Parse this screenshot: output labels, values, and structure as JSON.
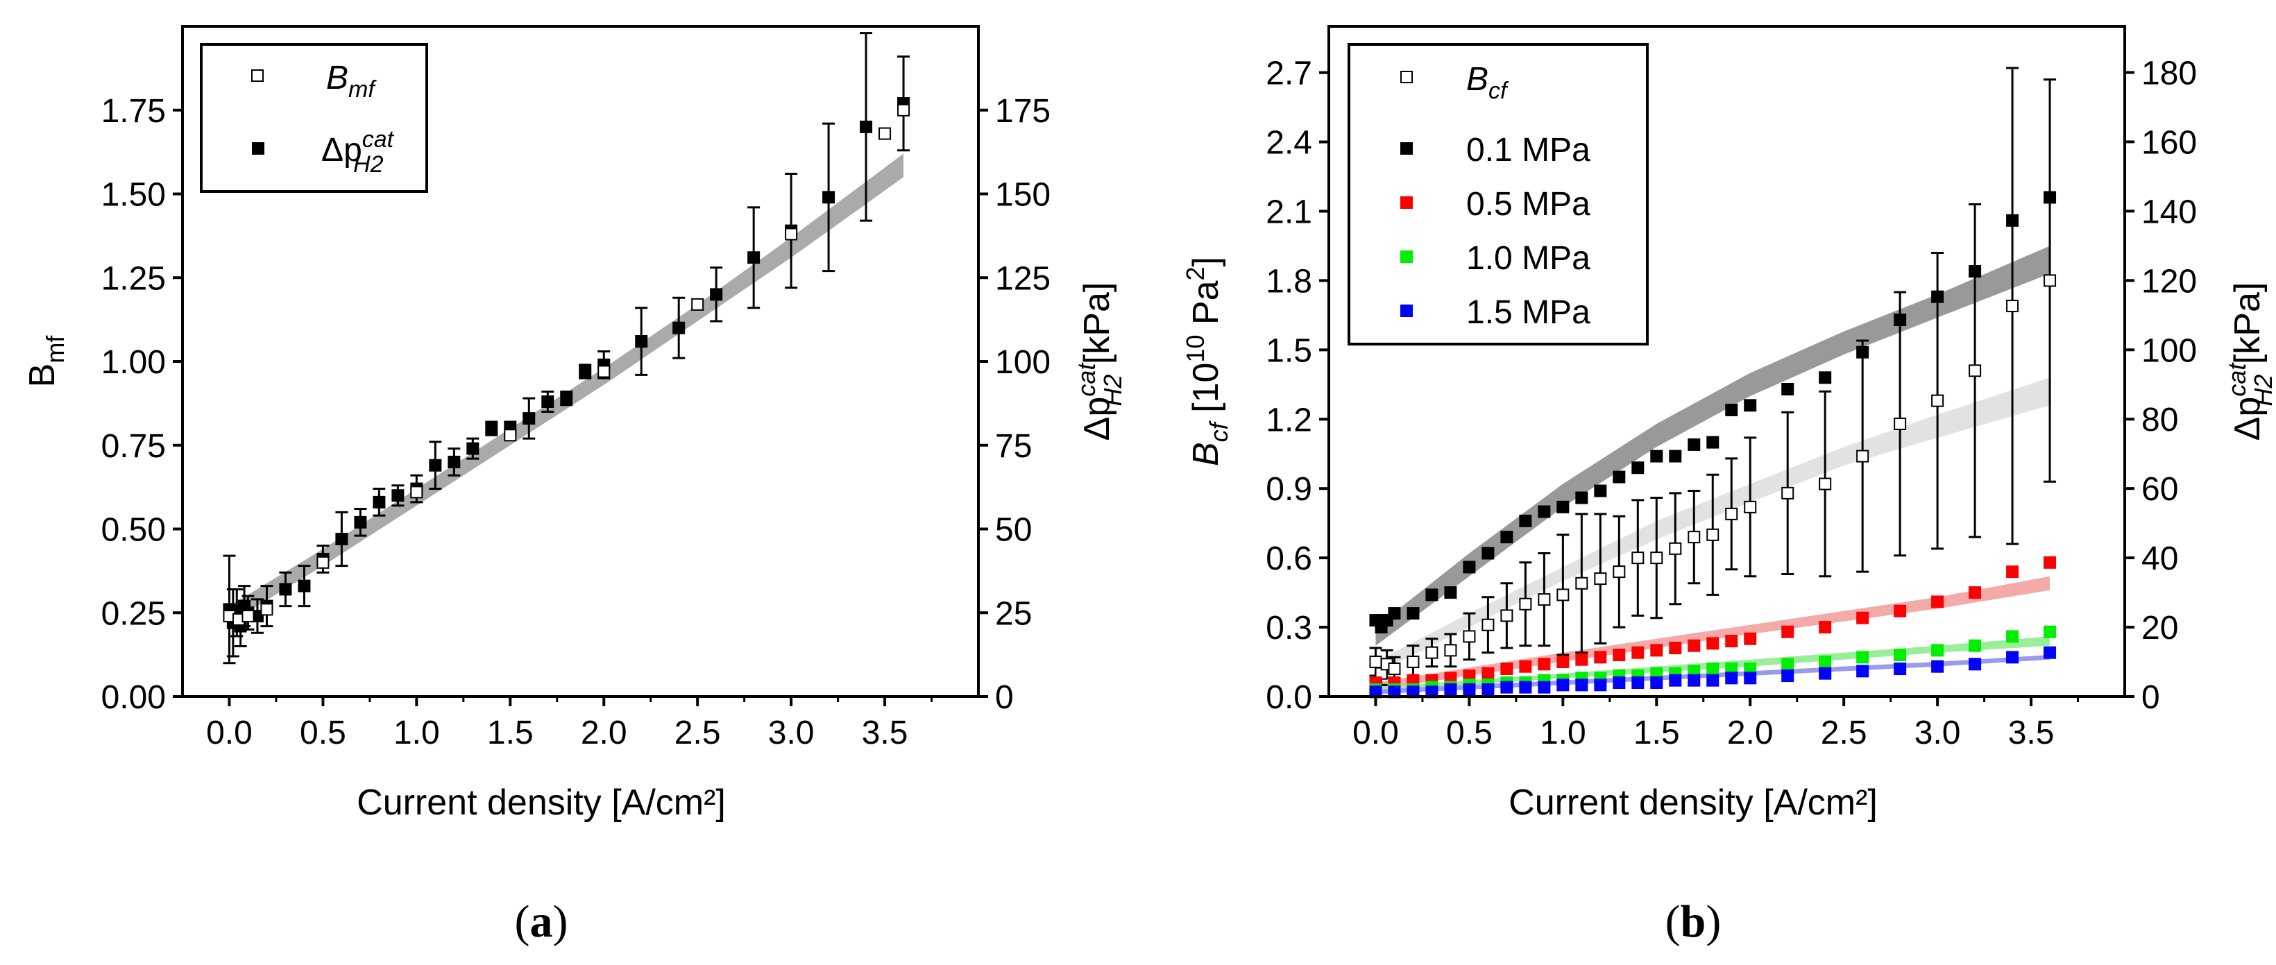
{
  "chart_data": [
    {
      "type": "scatter",
      "panel_label": "a",
      "xlabel": "Current density [A/cm²]",
      "ylabel": {
        "base": "B",
        "sub": "mf"
      },
      "y2label": {
        "prefix": "Δp",
        "sup": "cat",
        "sub": "H2",
        "unit": " [kPa]"
      },
      "xlim": [
        -0.25,
        4.0
      ],
      "ylim": [
        0,
        2.0
      ],
      "y2lim": [
        0,
        200
      ],
      "xticks": [
        "0.0",
        "0.5",
        "1.0",
        "1.5",
        "2.0",
        "2.5",
        "3.0",
        "3.5"
      ],
      "yticks": [
        "0.00",
        "0.25",
        "0.50",
        "0.75",
        "1.00",
        "1.25",
        "1.50",
        "1.75"
      ],
      "y2ticks": [
        "0",
        "25",
        "50",
        "75",
        "100",
        "125",
        "150",
        "175"
      ],
      "legend_position": "top-left",
      "legend": [
        {
          "base": "B",
          "sub": "mf",
          "marker": "open-square"
        },
        {
          "base": "Δp",
          "sup": "cat",
          "sub": "H2",
          "marker": "filled-square"
        }
      ],
      "band": {
        "x": [
          0.0,
          0.5,
          1.0,
          1.5,
          2.0,
          2.5,
          3.0,
          3.6
        ],
        "upper": [
          0.27,
          0.44,
          0.62,
          0.8,
          0.98,
          1.17,
          1.37,
          1.62
        ],
        "lower": [
          0.22,
          0.39,
          0.57,
          0.75,
          0.93,
          1.12,
          1.31,
          1.55
        ],
        "color": "#aaaaaa"
      },
      "series": [
        {
          "marker": "filled-square",
          "color": "#000000",
          "x": [
            0.0,
            0.02,
            0.04,
            0.06,
            0.08,
            0.1,
            0.15,
            0.2,
            0.3,
            0.4,
            0.5,
            0.6,
            0.7,
            0.8,
            0.9,
            1.0,
            1.1,
            1.2,
            1.3,
            1.4,
            1.5,
            1.6,
            1.7,
            1.8,
            1.9,
            2.0,
            2.2,
            2.4,
            2.6,
            2.8,
            3.0,
            3.2,
            3.4,
            3.6
          ],
          "y": [
            0.26,
            0.22,
            0.25,
            0.21,
            0.27,
            0.25,
            0.24,
            0.27,
            0.32,
            0.33,
            0.41,
            0.47,
            0.52,
            0.58,
            0.6,
            0.62,
            0.69,
            0.7,
            0.74,
            0.8,
            0.8,
            0.83,
            0.88,
            0.89,
            0.97,
            0.99,
            1.06,
            1.1,
            1.2,
            1.31,
            1.39,
            1.49,
            1.7,
            1.77
          ],
          "err": [
            0.16,
            0.1,
            0.07,
            0.06,
            0.06,
            0.05,
            0.05,
            0.06,
            0.05,
            0.06,
            0.04,
            0.08,
            0.04,
            0.04,
            0.03,
            0.04,
            0.07,
            0.04,
            0.03,
            0.02,
            0.02,
            0.06,
            0.03,
            0.02,
            0.02,
            0.04,
            0.1,
            0.09,
            0.08,
            0.15,
            0.17,
            0.22,
            0.28,
            0.14
          ]
        },
        {
          "marker": "open-square",
          "color": "#000000",
          "x": [
            0.0,
            0.05,
            0.1,
            0.2,
            0.5,
            1.0,
            1.5,
            2.0,
            2.5,
            3.0,
            3.5,
            3.6
          ],
          "y": [
            0.24,
            0.23,
            0.24,
            0.26,
            0.4,
            0.61,
            0.78,
            0.97,
            1.17,
            1.38,
            1.68,
            1.75
          ]
        }
      ]
    },
    {
      "type": "scatter",
      "panel_label": "b",
      "xlabel": "Current density [A/cm²]",
      "ylabel": {
        "base": "B",
        "sub": "cf",
        "unit_pre": " [10",
        "unit_sup1": "10",
        "unit_mid": " Pa",
        "unit_sup2": "2",
        "unit_post": "]"
      },
      "y2label": {
        "prefix": "Δp",
        "sup": "cat",
        "sub": "H2",
        "unit": " [kPa]"
      },
      "xlim": [
        -0.25,
        4.0
      ],
      "ylim": [
        0,
        2.9
      ],
      "y2lim": [
        0,
        193.3
      ],
      "xticks": [
        "0.0",
        "0.5",
        "1.0",
        "1.5",
        "2.0",
        "2.5",
        "3.0",
        "3.5"
      ],
      "yticks": [
        "0.0",
        "0.3",
        "0.6",
        "0.9",
        "1.2",
        "1.5",
        "1.8",
        "2.1",
        "2.4",
        "2.7"
      ],
      "y2ticks": [
        "0",
        "20",
        "40",
        "60",
        "80",
        "100",
        "120",
        "140",
        "160",
        "180"
      ],
      "legend_position": "top-left",
      "legend": [
        {
          "base": "B",
          "sub": "cf",
          "marker": "open-square",
          "color": "#000000"
        },
        {
          "label": "0.1 MPa",
          "marker": "filled-square",
          "color": "#000000"
        },
        {
          "label": "0.5 MPa",
          "marker": "filled-square",
          "color": "#ff0000"
        },
        {
          "label": "1.0 MPa",
          "marker": "filled-square",
          "color": "#00ee00"
        },
        {
          "label": "1.5 MPa",
          "marker": "filled-square",
          "color": "#0000ff"
        }
      ],
      "bands": [
        {
          "color": "#999999",
          "x": [
            0.0,
            0.5,
            1.0,
            1.5,
            2.0,
            2.5,
            3.0,
            3.6
          ],
          "upper": [
            0.3,
            0.62,
            0.92,
            1.18,
            1.4,
            1.58,
            1.74,
            1.95
          ],
          "lower": [
            0.22,
            0.52,
            0.82,
            1.08,
            1.3,
            1.48,
            1.64,
            1.83
          ]
        },
        {
          "color": "#e2e2e2",
          "x": [
            0.0,
            0.5,
            1.0,
            1.5,
            2.0,
            2.5,
            3.0,
            3.6
          ],
          "upper": [
            0.15,
            0.36,
            0.56,
            0.76,
            0.92,
            1.08,
            1.22,
            1.38
          ],
          "lower": [
            0.1,
            0.3,
            0.5,
            0.68,
            0.84,
            1.0,
            1.12,
            1.26
          ]
        },
        {
          "color": "#f5aaaa",
          "x": [
            0.0,
            1.0,
            2.0,
            3.0,
            3.6
          ],
          "upper": [
            0.06,
            0.19,
            0.31,
            0.43,
            0.52
          ],
          "lower": [
            0.03,
            0.15,
            0.27,
            0.38,
            0.46
          ]
        },
        {
          "color": "#99ee99",
          "x": [
            0.0,
            1.0,
            2.0,
            3.0,
            3.6
          ],
          "upper": [
            0.04,
            0.1,
            0.16,
            0.22,
            0.26
          ],
          "lower": [
            0.02,
            0.08,
            0.13,
            0.19,
            0.22
          ]
        },
        {
          "color": "#9999ee",
          "x": [
            0.0,
            1.0,
            2.0,
            3.0,
            3.6
          ],
          "upper": [
            0.03,
            0.07,
            0.11,
            0.15,
            0.18
          ],
          "lower": [
            0.01,
            0.05,
            0.09,
            0.13,
            0.16
          ]
        }
      ],
      "series": [
        {
          "name": "0.1 MPa",
          "marker": "filled-square",
          "color": "#000000",
          "x": [
            0.0,
            0.03,
            0.06,
            0.1,
            0.2,
            0.3,
            0.4,
            0.5,
            0.6,
            0.7,
            0.8,
            0.9,
            1.0,
            1.1,
            1.2,
            1.3,
            1.4,
            1.5,
            1.6,
            1.7,
            1.8,
            1.9,
            2.0,
            2.2,
            2.4,
            2.6,
            2.8,
            3.0,
            3.2,
            3.4,
            3.6
          ],
          "y": [
            0.33,
            0.3,
            0.33,
            0.36,
            0.36,
            0.44,
            0.45,
            0.56,
            0.62,
            0.69,
            0.76,
            0.8,
            0.82,
            0.86,
            0.89,
            0.95,
            0.99,
            1.04,
            1.04,
            1.09,
            1.1,
            1.24,
            1.26,
            1.33,
            1.38,
            1.49,
            1.63,
            1.73,
            1.84,
            2.06,
            2.16
          ]
        },
        {
          "name": "B_cf",
          "marker": "open-square",
          "color": "#000000",
          "x": [
            0.0,
            0.03,
            0.06,
            0.1,
            0.2,
            0.3,
            0.4,
            0.5,
            0.6,
            0.7,
            0.8,
            0.9,
            1.0,
            1.1,
            1.2,
            1.3,
            1.4,
            1.5,
            1.6,
            1.7,
            1.8,
            1.9,
            2.0,
            2.2,
            2.4,
            2.6,
            2.8,
            3.0,
            3.2,
            3.4,
            3.6
          ],
          "y": [
            0.15,
            0.1,
            0.14,
            0.12,
            0.15,
            0.19,
            0.2,
            0.26,
            0.31,
            0.35,
            0.4,
            0.42,
            0.44,
            0.49,
            0.51,
            0.54,
            0.6,
            0.6,
            0.64,
            0.69,
            0.7,
            0.79,
            0.82,
            0.88,
            0.92,
            1.04,
            1.18,
            1.28,
            1.41,
            1.69,
            1.8
          ],
          "err": [
            0.06,
            0.05,
            0.06,
            0.05,
            0.07,
            0.06,
            0.07,
            0.1,
            0.12,
            0.14,
            0.18,
            0.2,
            0.26,
            0.3,
            0.28,
            0.24,
            0.25,
            0.26,
            0.24,
            0.2,
            0.26,
            0.24,
            0.3,
            0.35,
            0.4,
            0.5,
            0.57,
            0.64,
            0.72,
            1.03,
            0.87
          ]
        },
        {
          "name": "0.5 MPa",
          "marker": "filled-square",
          "color": "#ff0000",
          "x": [
            0.0,
            0.1,
            0.2,
            0.3,
            0.4,
            0.5,
            0.6,
            0.7,
            0.8,
            0.9,
            1.0,
            1.1,
            1.2,
            1.3,
            1.4,
            1.5,
            1.6,
            1.7,
            1.8,
            1.9,
            2.0,
            2.2,
            2.4,
            2.6,
            2.8,
            3.0,
            3.2,
            3.4,
            3.6
          ],
          "y": [
            0.06,
            0.06,
            0.07,
            0.07,
            0.08,
            0.09,
            0.1,
            0.12,
            0.13,
            0.14,
            0.15,
            0.16,
            0.17,
            0.18,
            0.19,
            0.2,
            0.21,
            0.22,
            0.23,
            0.24,
            0.25,
            0.28,
            0.3,
            0.34,
            0.37,
            0.41,
            0.45,
            0.54,
            0.58
          ]
        },
        {
          "name": "1.0 MPa",
          "marker": "filled-square",
          "color": "#00ee00",
          "x": [
            0.0,
            0.1,
            0.2,
            0.3,
            0.4,
            0.5,
            0.6,
            0.7,
            0.8,
            0.9,
            1.0,
            1.1,
            1.2,
            1.3,
            1.4,
            1.5,
            1.6,
            1.7,
            1.8,
            1.9,
            2.0,
            2.2,
            2.4,
            2.6,
            2.8,
            3.0,
            3.2,
            3.4,
            3.6
          ],
          "y": [
            0.03,
            0.03,
            0.03,
            0.04,
            0.04,
            0.05,
            0.05,
            0.06,
            0.06,
            0.07,
            0.07,
            0.08,
            0.08,
            0.09,
            0.09,
            0.1,
            0.1,
            0.11,
            0.12,
            0.12,
            0.12,
            0.14,
            0.15,
            0.17,
            0.18,
            0.2,
            0.22,
            0.26,
            0.28
          ]
        },
        {
          "name": "1.5 MPa",
          "marker": "filled-square",
          "color": "#0000ff",
          "x": [
            0.0,
            0.1,
            0.2,
            0.3,
            0.4,
            0.5,
            0.6,
            0.7,
            0.8,
            0.9,
            1.0,
            1.1,
            1.2,
            1.3,
            1.4,
            1.5,
            1.6,
            1.7,
            1.8,
            1.9,
            2.0,
            2.2,
            2.4,
            2.6,
            2.8,
            3.0,
            3.2,
            3.4,
            3.6
          ],
          "y": [
            0.02,
            0.02,
            0.02,
            0.02,
            0.03,
            0.03,
            0.03,
            0.04,
            0.04,
            0.04,
            0.05,
            0.05,
            0.05,
            0.06,
            0.06,
            0.06,
            0.07,
            0.07,
            0.07,
            0.08,
            0.08,
            0.09,
            0.1,
            0.11,
            0.12,
            0.13,
            0.14,
            0.17,
            0.19
          ]
        }
      ]
    }
  ]
}
